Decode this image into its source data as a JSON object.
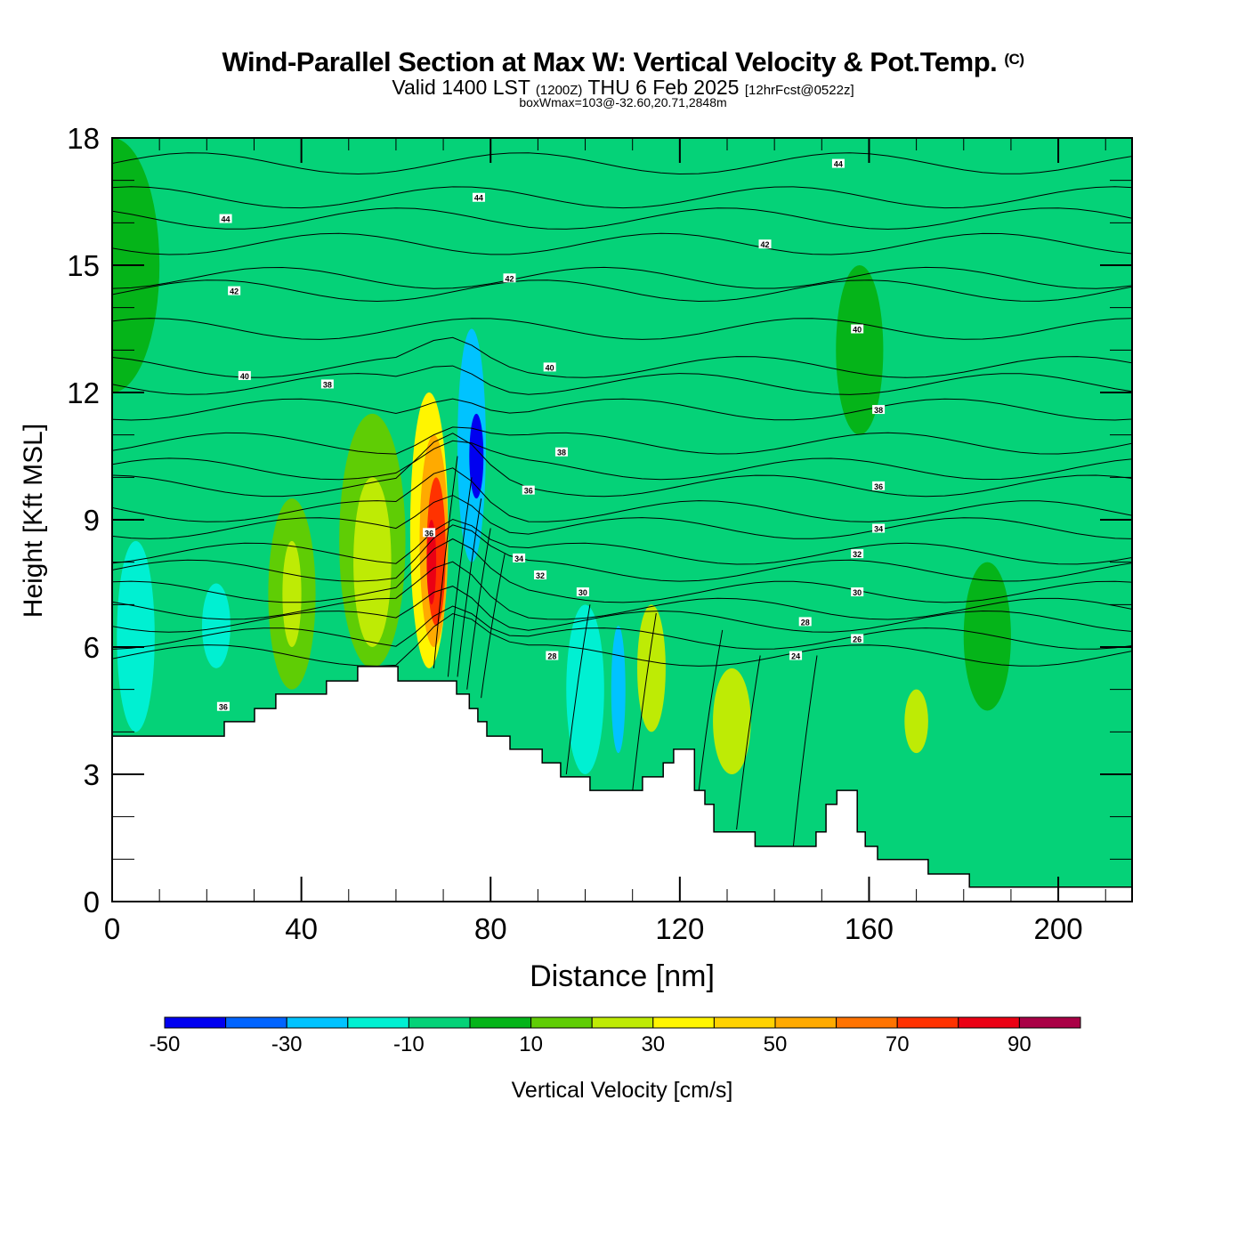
{
  "header": {
    "title": "Wind-Parallel Section at Max W: Vertical Velocity & Pot.Temp.",
    "copyright": "(C)",
    "valid_main": "Valid 1400 LST",
    "valid_utc": "(1200Z)",
    "valid_date": "THU 6 Feb 2025",
    "forecast": "[12hrFcst@0522z]",
    "subtitle": "boxWmax=103@-32.60,20.71,2848m"
  },
  "chart_data": {
    "type": "heatmap",
    "title": "Wind-Parallel Section at Max W: Vertical Velocity & Pot.Temp.",
    "xlabel": "Distance [nm]",
    "ylabel": "Height [Kft MSL]",
    "xlim": [
      0,
      215.6
    ],
    "ylim": [
      0,
      18
    ],
    "x_ticks": [
      0,
      40,
      80,
      120,
      160,
      200
    ],
    "x_tick_labels": [
      "0",
      "40",
      "80",
      "120",
      "160",
      "200"
    ],
    "y_ticks": [
      0,
      3,
      6,
      9,
      12,
      15,
      18
    ],
    "y_tick_labels": [
      "0",
      "3",
      "6",
      "9",
      "12",
      "15",
      "18"
    ],
    "colorbar": {
      "label": "Vertical Velocity [cm/s]",
      "levels": [
        -50,
        -40,
        -30,
        -20,
        -10,
        0,
        10,
        20,
        30,
        40,
        50,
        60,
        70,
        80,
        90,
        100
      ],
      "tick_labels": [
        "-50",
        "-30",
        "-10",
        "10",
        "30",
        "50",
        "70",
        "90"
      ],
      "tick_values": [
        -50,
        -30,
        -10,
        10,
        30,
        50,
        70,
        90
      ],
      "colors": [
        "#0000f0",
        "#0064ff",
        "#00c3ff",
        "#00f0d2",
        "#05d278",
        "#05b419",
        "#5fcd05",
        "#beeb05",
        "#fff500",
        "#ffd200",
        "#ffaa00",
        "#ff7300",
        "#ff3200",
        "#eb0014",
        "#aa0046"
      ]
    },
    "background_level_color": "#05d278",
    "velocity_features": [
      {
        "x": 0,
        "y_range": [
          12.0,
          18
        ],
        "width": 20,
        "value": 5
      },
      {
        "x": 5,
        "y_range": [
          4,
          8.5
        ],
        "width": 8,
        "value": -15
      },
      {
        "x": 22,
        "y_range": [
          5.5,
          7.5
        ],
        "width": 6,
        "value": -15
      },
      {
        "x": 38,
        "y_range": [
          5,
          9.5
        ],
        "width": 10,
        "value": 15
      },
      {
        "x": 38,
        "y_range": [
          6,
          8.5
        ],
        "width": 4,
        "value": 25
      },
      {
        "x": 55,
        "y_range": [
          5.5,
          11.5
        ],
        "width": 14,
        "value": 15
      },
      {
        "x": 55,
        "y_range": [
          6,
          10
        ],
        "width": 8,
        "value": 25
      },
      {
        "x": 67,
        "y_range": [
          5.5,
          12
        ],
        "width": 8,
        "value": 35
      },
      {
        "x": 68,
        "y_range": [
          6,
          11
        ],
        "width": 6,
        "value": 55
      },
      {
        "x": 68.5,
        "y_range": [
          6.5,
          10
        ],
        "width": 4,
        "value": 75
      },
      {
        "x": 67.5,
        "y_range": [
          7,
          9
        ],
        "width": 2,
        "value": 85
      },
      {
        "x": 76,
        "y_range": [
          8,
          13.5
        ],
        "width": 6,
        "value": -25
      },
      {
        "x": 77,
        "y_range": [
          9.5,
          11.5
        ],
        "width": 3,
        "value": -45
      },
      {
        "x": 100,
        "y_range": [
          3,
          7
        ],
        "width": 8,
        "value": -15
      },
      {
        "x": 107,
        "y_range": [
          3.5,
          6.5
        ],
        "width": 3,
        "value": -25
      },
      {
        "x": 114,
        "y_range": [
          4,
          7
        ],
        "width": 6,
        "value": 25
      },
      {
        "x": 131,
        "y_range": [
          3,
          5.5
        ],
        "width": 8,
        "value": 25
      },
      {
        "x": 158,
        "y_range": [
          11,
          15
        ],
        "width": 10,
        "value": 5
      },
      {
        "x": 170,
        "y_range": [
          3.5,
          5
        ],
        "width": 5,
        "value": 25
      },
      {
        "x": 185,
        "y_range": [
          4.5,
          8
        ],
        "width": 10,
        "value": 5
      }
    ],
    "theta_contour_labels": [
      {
        "x": 24,
        "y": 16.1,
        "label": "44"
      },
      {
        "x": 77.5,
        "y": 16.6,
        "label": "44"
      },
      {
        "x": 153.5,
        "y": 17.4,
        "label": "44"
      },
      {
        "x": 25.8,
        "y": 14.4,
        "label": "42"
      },
      {
        "x": 84,
        "y": 14.7,
        "label": "42"
      },
      {
        "x": 138,
        "y": 15.5,
        "label": "42"
      },
      {
        "x": 28,
        "y": 12.4,
        "label": "40"
      },
      {
        "x": 92.5,
        "y": 12.6,
        "label": "40"
      },
      {
        "x": 157.5,
        "y": 13.5,
        "label": "40"
      },
      {
        "x": 45.5,
        "y": 12.2,
        "label": "38"
      },
      {
        "x": 95,
        "y": 10.6,
        "label": "38"
      },
      {
        "x": 162,
        "y": 11.6,
        "label": "38"
      },
      {
        "x": 88,
        "y": 9.7,
        "label": "36"
      },
      {
        "x": 67,
        "y": 8.7,
        "label": "36"
      },
      {
        "x": 162,
        "y": 9.8,
        "label": "36"
      },
      {
        "x": 23.5,
        "y": 4.6,
        "label": "36"
      },
      {
        "x": 86,
        "y": 8.1,
        "label": "34"
      },
      {
        "x": 162,
        "y": 8.8,
        "label": "34"
      },
      {
        "x": 90.5,
        "y": 7.7,
        "label": "32"
      },
      {
        "x": 157.5,
        "y": 8.2,
        "label": "32"
      },
      {
        "x": 99.5,
        "y": 7.3,
        "label": "30"
      },
      {
        "x": 157.5,
        "y": 7.3,
        "label": "30"
      },
      {
        "x": 93,
        "y": 5.8,
        "label": "28"
      },
      {
        "x": 146.5,
        "y": 6.6,
        "label": "28"
      },
      {
        "x": 157.5,
        "y": 6.2,
        "label": "26"
      },
      {
        "x": 144.5,
        "y": 5.8,
        "label": "24"
      }
    ],
    "terrain": {
      "x": [
        0,
        23.7,
        23.7,
        30.1,
        30.1,
        34.6,
        34.6,
        45.3,
        45.3,
        51.9,
        51.9,
        60.4,
        60.4,
        72.8,
        72.8,
        75.5,
        75.5,
        77.3,
        77.3,
        79.2,
        79.2,
        84.1,
        84.1,
        90.9,
        90.9,
        94.8,
        94.8,
        101.0,
        101.0,
        112.1,
        112.1,
        116.5,
        116.5,
        118.7,
        118.7,
        123.1,
        123.1,
        125.3,
        125.3,
        127.2,
        127.2,
        135.9,
        135.9,
        148.8,
        148.8,
        150.9,
        150.9,
        153.2,
        153.2,
        157.5,
        157.5,
        159.2,
        159.2,
        161.8,
        161.8,
        172.5,
        172.5,
        181.2,
        181.2,
        215.6
      ],
      "y": [
        3.9,
        3.9,
        4.24,
        4.24,
        4.55,
        4.55,
        4.89,
        4.89,
        5.2,
        5.2,
        5.54,
        5.54,
        5.2,
        5.2,
        4.89,
        4.89,
        4.55,
        4.55,
        4.24,
        4.24,
        3.9,
        3.9,
        3.59,
        3.59,
        3.27,
        3.27,
        2.94,
        2.94,
        2.62,
        2.62,
        2.94,
        2.94,
        3.27,
        3.27,
        3.59,
        3.59,
        2.62,
        2.62,
        2.29,
        2.29,
        1.64,
        1.64,
        1.3,
        1.3,
        1.64,
        1.64,
        2.29,
        2.29,
        2.62,
        2.62,
        1.64,
        1.64,
        1.3,
        1.3,
        0.99,
        0.99,
        0.65,
        0.65,
        0.34,
        0.34
      ]
    }
  }
}
